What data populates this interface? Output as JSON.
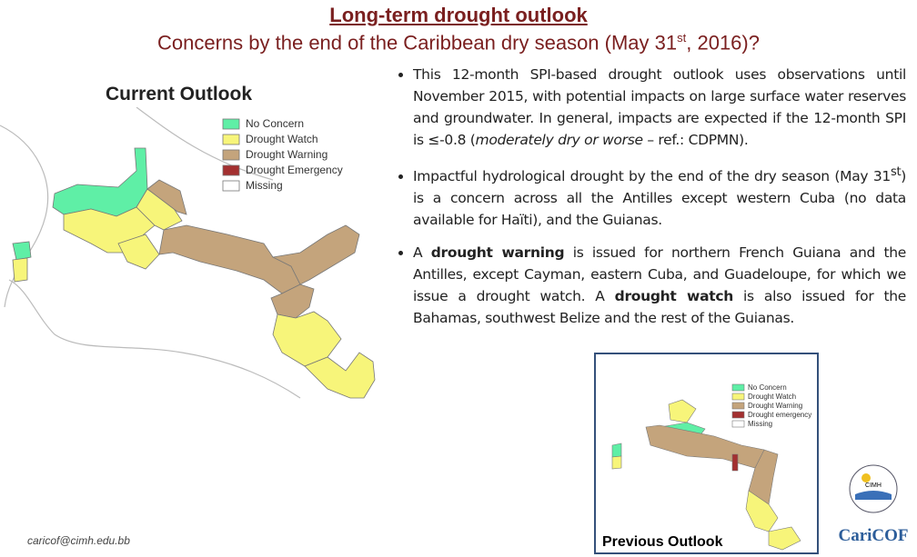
{
  "header": {
    "title": "Long-term drought outlook",
    "subtitle": [
      "Concerns by the end of the Caribbean dry season (May 31",
      "st",
      ", 2016)?"
    ]
  },
  "current": {
    "label": "Current Outlook",
    "legend": [
      "No Concern",
      "Drought Watch",
      "Drought Warning",
      "Drought Emergency",
      "Missing"
    ]
  },
  "bullets": [
    [
      "This 12-month SPI-based drought outlook uses observations until November 2015, with potential impacts on large surface water reserves and groundwater. In general, impacts are expected if the 12-month SPI is ≤-0.8 (",
      "moderately dry or worse",
      " – ref.: CDPMN)."
    ],
    [
      "Impactful hydrological drought by the end of the dry season (May 31",
      "st",
      ") is a concern across all the Antilles except western Cuba (no data available for Haïti), and the Guianas."
    ],
    [
      "A ",
      "drought warning",
      " is issued for northern French Guiana and the Antilles, except Cayman, eastern Cuba, and Guadeloupe, for which we issue a drought watch. A ",
      "drought watch",
      " is also issued for the Bahamas, southwest Belize and the rest of the Guianas."
    ]
  ],
  "previous": {
    "label": "Previous Outlook",
    "legend": [
      "No Concern",
      "Drought Watch",
      "Drought Warning",
      "Drought emergency",
      "Missing"
    ]
  },
  "footer": {
    "email": "caricof@cimh.edu.bb",
    "logo1": "CIMH",
    "logo2": "CariCOF"
  }
}
